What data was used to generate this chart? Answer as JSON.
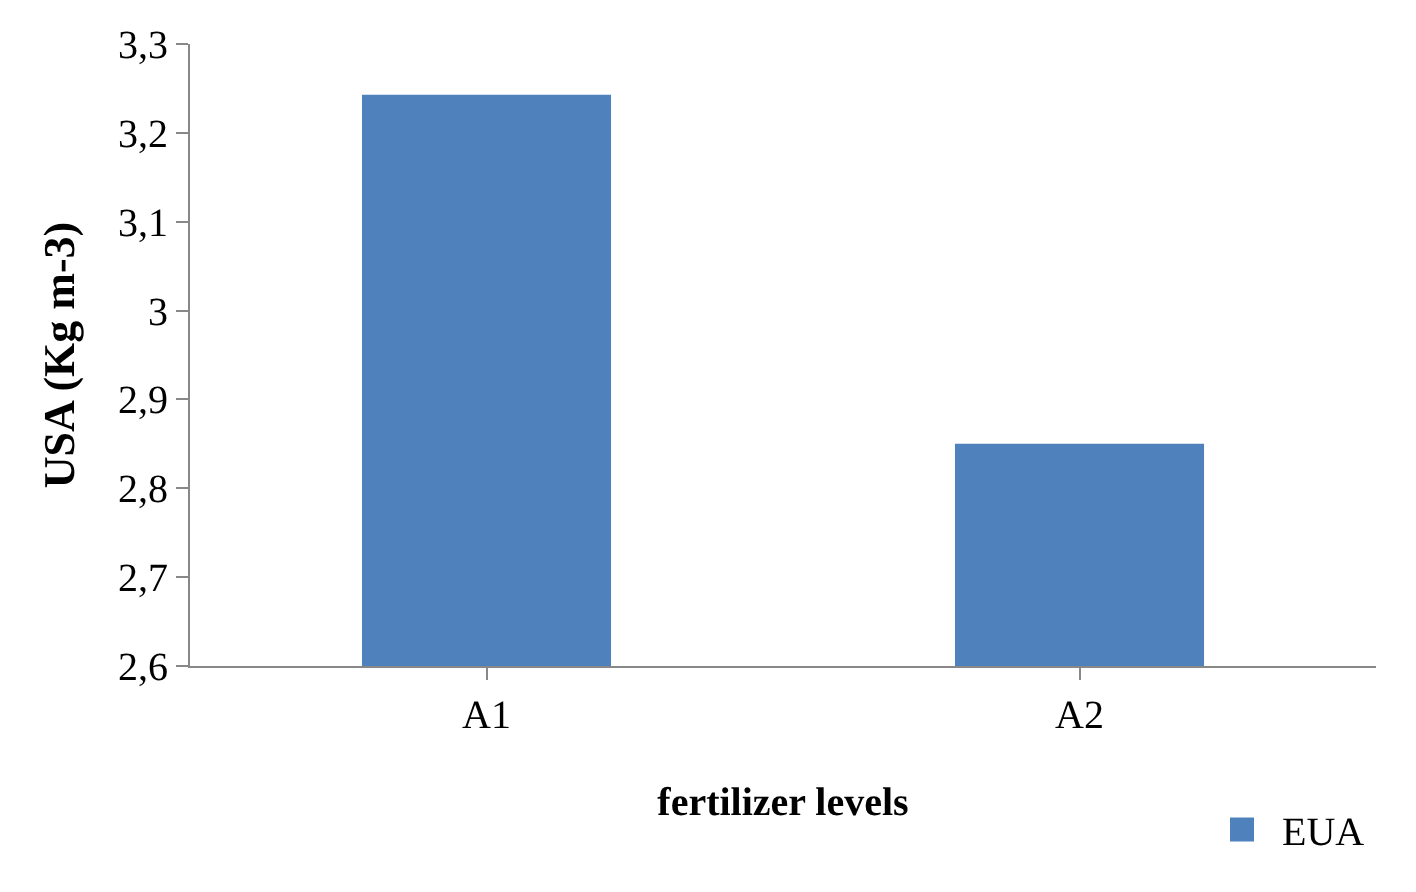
{
  "chart_data": {
    "type": "bar",
    "xlabel": "fertilizer levels",
    "ylabel": "USA (Kg m-3)",
    "categories": [
      "A1",
      "A2"
    ],
    "series": [
      {
        "name": "EUA",
        "color": "#4f81bd",
        "values": [
          3.243,
          2.85
        ]
      }
    ],
    "ylim": [
      2.6,
      3.3
    ],
    "yticks": [
      {
        "value": 2.6,
        "label": "2,6"
      },
      {
        "value": 2.7,
        "label": "2,7"
      },
      {
        "value": 2.8,
        "label": "2,8"
      },
      {
        "value": 2.9,
        "label": "2,9"
      },
      3,
      {
        "value": 3.1,
        "label": "3,1"
      },
      {
        "value": 3.2,
        "label": "3,2"
      },
      {
        "value": 3.3,
        "label": "3,3"
      }
    ],
    "legend": "bottom right"
  }
}
